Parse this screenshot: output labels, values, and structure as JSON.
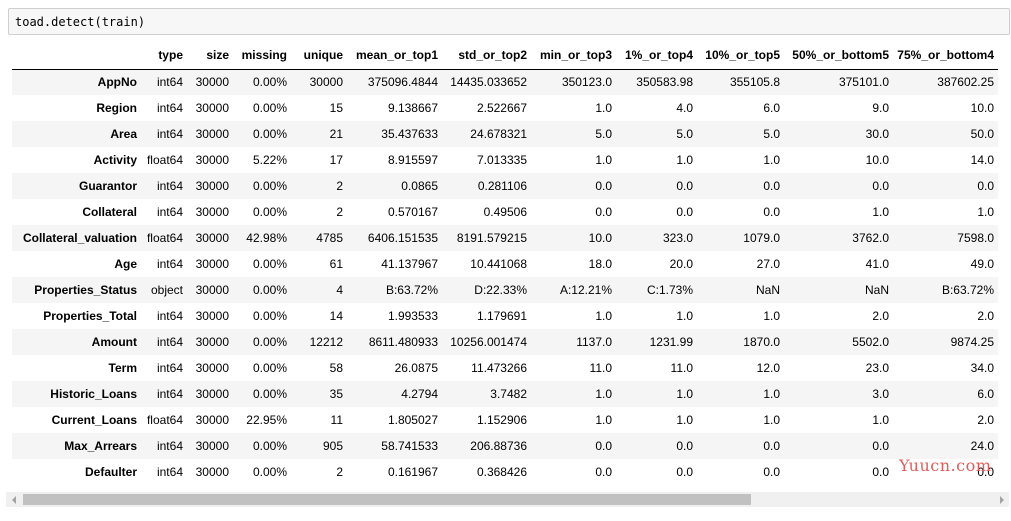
{
  "code_cell": {
    "source": "toad.detect(train)"
  },
  "table": {
    "columns": [
      "type",
      "size",
      "missing",
      "unique",
      "mean_or_top1",
      "std_or_top2",
      "min_or_top3",
      "1%_or_top4",
      "10%_or_top5",
      "50%_or_bottom5",
      "75%_or_bottom4"
    ],
    "rows": [
      {
        "index": "AppNo",
        "cells": [
          "int64",
          "30000",
          "0.00%",
          "30000",
          "375096.4844",
          "14435.033652",
          "350123.0",
          "350583.98",
          "355105.8",
          "375101.0",
          "387602.25"
        ]
      },
      {
        "index": "Region",
        "cells": [
          "int64",
          "30000",
          "0.00%",
          "15",
          "9.138667",
          "2.522667",
          "1.0",
          "4.0",
          "6.0",
          "9.0",
          "10.0"
        ]
      },
      {
        "index": "Area",
        "cells": [
          "int64",
          "30000",
          "0.00%",
          "21",
          "35.437633",
          "24.678321",
          "5.0",
          "5.0",
          "5.0",
          "30.0",
          "50.0"
        ]
      },
      {
        "index": "Activity",
        "cells": [
          "float64",
          "30000",
          "5.22%",
          "17",
          "8.915597",
          "7.013335",
          "1.0",
          "1.0",
          "1.0",
          "10.0",
          "14.0"
        ]
      },
      {
        "index": "Guarantor",
        "cells": [
          "int64",
          "30000",
          "0.00%",
          "2",
          "0.0865",
          "0.281106",
          "0.0",
          "0.0",
          "0.0",
          "0.0",
          "0.0"
        ]
      },
      {
        "index": "Collateral",
        "cells": [
          "int64",
          "30000",
          "0.00%",
          "2",
          "0.570167",
          "0.49506",
          "0.0",
          "0.0",
          "0.0",
          "1.0",
          "1.0"
        ]
      },
      {
        "index": "Collateral_valuation",
        "cells": [
          "float64",
          "30000",
          "42.98%",
          "4785",
          "6406.151535",
          "8191.579215",
          "10.0",
          "323.0",
          "1079.0",
          "3762.0",
          "7598.0"
        ]
      },
      {
        "index": "Age",
        "cells": [
          "int64",
          "30000",
          "0.00%",
          "61",
          "41.137967",
          "10.441068",
          "18.0",
          "20.0",
          "27.0",
          "41.0",
          "49.0"
        ]
      },
      {
        "index": "Properties_Status",
        "cells": [
          "object",
          "30000",
          "0.00%",
          "4",
          "B:63.72%",
          "D:22.33%",
          "A:12.21%",
          "C:1.73%",
          "NaN",
          "NaN",
          "B:63.72%"
        ]
      },
      {
        "index": "Properties_Total",
        "cells": [
          "int64",
          "30000",
          "0.00%",
          "14",
          "1.993533",
          "1.179691",
          "1.0",
          "1.0",
          "1.0",
          "2.0",
          "2.0"
        ]
      },
      {
        "index": "Amount",
        "cells": [
          "int64",
          "30000",
          "0.00%",
          "12212",
          "8611.480933",
          "10256.001474",
          "1137.0",
          "1231.99",
          "1870.0",
          "5502.0",
          "9874.25"
        ]
      },
      {
        "index": "Term",
        "cells": [
          "int64",
          "30000",
          "0.00%",
          "58",
          "26.0875",
          "11.473266",
          "11.0",
          "11.0",
          "12.0",
          "23.0",
          "34.0"
        ]
      },
      {
        "index": "Historic_Loans",
        "cells": [
          "int64",
          "30000",
          "0.00%",
          "35",
          "4.2794",
          "3.7482",
          "1.0",
          "1.0",
          "1.0",
          "3.0",
          "6.0"
        ]
      },
      {
        "index": "Current_Loans",
        "cells": [
          "float64",
          "30000",
          "22.95%",
          "11",
          "1.805027",
          "1.152906",
          "1.0",
          "1.0",
          "1.0",
          "1.0",
          "2.0"
        ]
      },
      {
        "index": "Max_Arrears",
        "cells": [
          "int64",
          "30000",
          "0.00%",
          "905",
          "58.741533",
          "206.88736",
          "0.0",
          "0.0",
          "0.0",
          "0.0",
          "24.0"
        ]
      },
      {
        "index": "Defaulter",
        "cells": [
          "int64",
          "30000",
          "0.00%",
          "2",
          "0.161967",
          "0.368426",
          "0.0",
          "0.0",
          "0.0",
          "0.0",
          "0.0"
        ]
      }
    ]
  },
  "watermark": {
    "text": "Yuucn.com"
  },
  "scrollbar": {
    "left_arrow_icon": "chevron-left-icon",
    "right_arrow_icon": "chevron-right-icon"
  }
}
